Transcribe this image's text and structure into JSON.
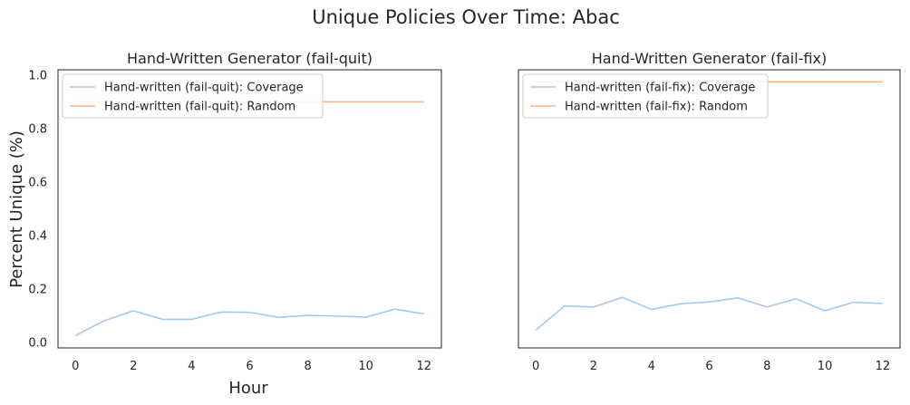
{
  "suptitle": "Unique Policies Over Time: Abac",
  "ylabel": "Percent Unique (%)",
  "xlabel": "Hour",
  "colors": {
    "coverage": "#a1c9f4",
    "random": "#ffb482",
    "axes": "#262626",
    "legend_border": "#cccccc"
  },
  "chart_data": [
    {
      "type": "line",
      "title": "Hand-Written Generator (fail-quit)",
      "x": [
        0,
        1,
        2,
        3,
        4,
        5,
        6,
        7,
        8,
        9,
        10,
        11,
        12
      ],
      "xticks": [
        "0",
        "2",
        "4",
        "6",
        "8",
        "10",
        "12"
      ],
      "yticks": [
        "0.0",
        "0.2",
        "0.4",
        "0.6",
        "0.8",
        "1.0"
      ],
      "xlim": [
        -0.6,
        12.6
      ],
      "ylim": [
        -0.02,
        1.02
      ],
      "legend_position": "upper-left",
      "series": [
        {
          "name": "Hand-written (fail-quit): Coverage",
          "color_key": "coverage",
          "values": [
            0.026,
            0.082,
            0.119,
            0.087,
            0.087,
            0.114,
            0.113,
            0.094,
            0.102,
            0.099,
            0.095,
            0.125,
            0.107
          ]
        },
        {
          "name": "Hand-written (fail-quit): Random",
          "color_key": "random",
          "values": [
            0.9,
            0.9,
            0.9,
            0.9,
            0.9,
            0.9,
            0.9,
            0.9,
            0.9,
            0.9,
            0.9,
            0.9,
            0.9
          ]
        }
      ]
    },
    {
      "type": "line",
      "title": "Hand-Written Generator (fail-fix)",
      "x": [
        0,
        1,
        2,
        3,
        4,
        5,
        6,
        7,
        8,
        9,
        10,
        11,
        12
      ],
      "xticks": [
        "0",
        "2",
        "4",
        "6",
        "8",
        "10",
        "12"
      ],
      "yticks": [],
      "xlim": [
        -0.6,
        12.6
      ],
      "ylim": [
        -0.02,
        1.02
      ],
      "legend_position": "upper-left",
      "series": [
        {
          "name": "Hand-written (fail-fix): Coverage",
          "color_key": "coverage",
          "values": [
            0.047,
            0.137,
            0.133,
            0.169,
            0.124,
            0.145,
            0.152,
            0.167,
            0.133,
            0.164,
            0.119,
            0.151,
            0.146
          ]
        },
        {
          "name": "Hand-written (fail-fix): Random",
          "color_key": "random",
          "values": [
            0.975,
            0.975,
            0.975,
            0.975,
            0.975,
            0.975,
            0.975,
            0.975,
            0.975,
            0.975,
            0.975,
            0.975,
            0.975
          ]
        }
      ]
    }
  ]
}
